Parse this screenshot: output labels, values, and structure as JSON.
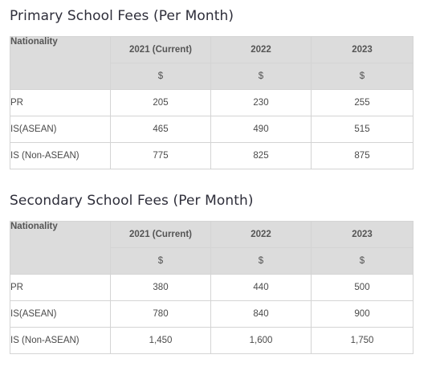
{
  "tables": [
    {
      "title": "Primary School Fees (Per Month)",
      "header_label": "Nationality",
      "years": [
        "2021 (Current)",
        "2022",
        "2023"
      ],
      "currency": [
        "$",
        "$",
        "$"
      ],
      "rows": [
        {
          "label": "PR",
          "values": [
            "205",
            "230",
            "255"
          ]
        },
        {
          "label": "IS(ASEAN)",
          "values": [
            "465",
            "490",
            "515"
          ]
        },
        {
          "label": "IS (Non-ASEAN)",
          "values": [
            "775",
            "825",
            "875"
          ]
        }
      ]
    },
    {
      "title": "Secondary School Fees (Per Month)",
      "header_label": "Nationality",
      "years": [
        "2021 (Current)",
        "2022",
        "2023"
      ],
      "currency": [
        "$",
        "$",
        "$"
      ],
      "rows": [
        {
          "label": "PR",
          "values": [
            "380",
            "440",
            "500"
          ]
        },
        {
          "label": "IS(ASEAN)",
          "values": [
            "780",
            "840",
            "900"
          ]
        },
        {
          "label": "IS (Non-ASEAN)",
          "values": [
            "1,450",
            "1,600",
            "1,750"
          ]
        }
      ]
    }
  ]
}
